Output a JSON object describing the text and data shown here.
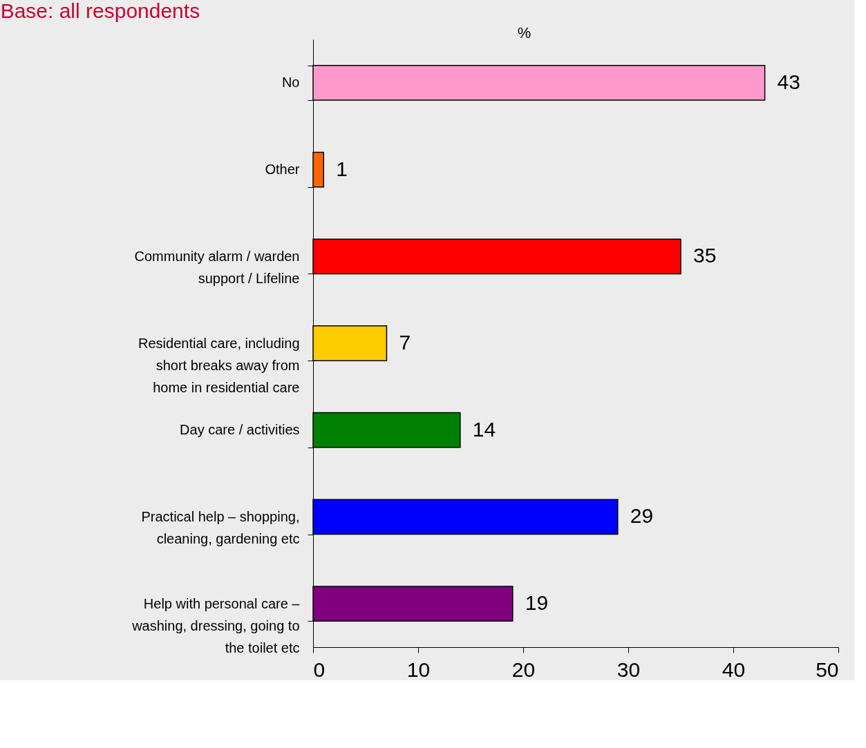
{
  "chart_data": {
    "type": "bar",
    "orientation": "horizontal",
    "title": "Base: all respondents",
    "xlabel": "%",
    "categories": [
      "No",
      "Other",
      "Community alarm / warden\nsupport / Lifeline",
      "Residential care, including\nshort breaks away from\nhome in residential care",
      "Day care / activities",
      "Practical help – shopping,\ncleaning, gardening etc",
      "Help with personal care –\nwashing, dressing, going to\nthe toilet etc"
    ],
    "values": [
      43,
      1,
      35,
      7,
      14,
      29,
      19
    ],
    "colors": [
      "#ff99cc",
      "#ff6600",
      "#ff0000",
      "#ffcc00",
      "#008000",
      "#0000ff",
      "#800080"
    ],
    "xlim": [
      0,
      50
    ],
    "xticks": [
      0,
      10,
      20,
      30,
      40,
      50
    ],
    "data_labels": true,
    "grid": false,
    "legend": false
  }
}
